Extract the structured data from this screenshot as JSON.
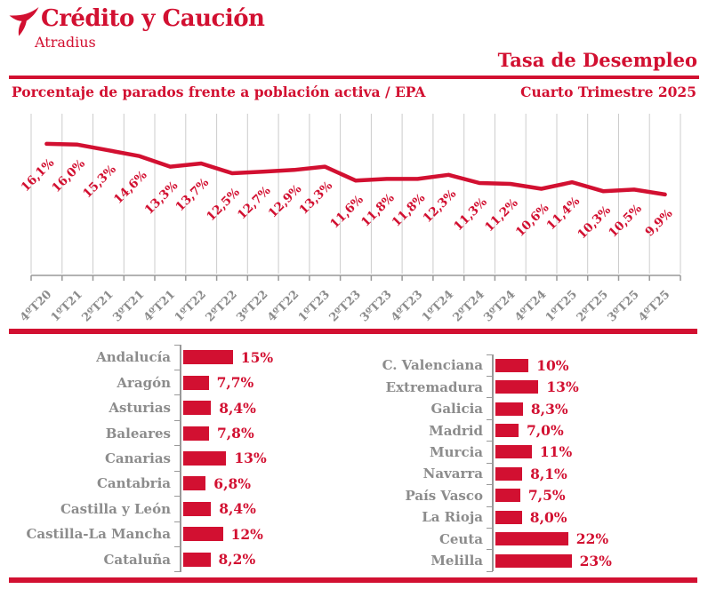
{
  "brand": {
    "name": "Crédito y Caución",
    "sub": "Atradius"
  },
  "title": "Tasa de Desempleo",
  "subtitle": "Porcentaje de parados frente a población activa / EPA",
  "period": "Cuarto Trimestre 2025",
  "colors": {
    "red": "#d21031",
    "gray": "#8c8c8c",
    "gridline": "#cccccc",
    "axis": "#999999"
  },
  "chart_data": [
    {
      "type": "line",
      "title": "Tasa de Desempleo",
      "x": [
        "4ºT20",
        "1ºT21",
        "2ºT21",
        "3ºT21",
        "4ºT21",
        "1ºT22",
        "2ºT22",
        "3ºT22",
        "4ºT22",
        "1ºT23",
        "2ºT23",
        "3ºT23",
        "4ºT23",
        "1ºT24",
        "2ºT24",
        "3ºT24",
        "4ºT24",
        "1ºT25",
        "2ºT25",
        "3ºT25",
        "4ºT25"
      ],
      "values": [
        16.1,
        16.0,
        15.3,
        14.6,
        13.3,
        13.7,
        12.5,
        12.7,
        12.9,
        13.3,
        11.6,
        11.8,
        11.8,
        12.3,
        11.3,
        11.2,
        10.6,
        11.4,
        10.3,
        10.5,
        9.9
      ],
      "labels": [
        "16,1%",
        "16,0%",
        "15,3%",
        "14,6%",
        "13,3%",
        "13,7%",
        "12,5%",
        "12,7%",
        "12,9%",
        "13,3%",
        "11,6%",
        "11,8%",
        "11,8%",
        "12,3%",
        "11,3%",
        "11,2%",
        "10,6%",
        "11,4%",
        "10,3%",
        "10,5%",
        "9,9%"
      ],
      "ylim": [
        0,
        20
      ],
      "grid": "vertical",
      "line_color": "#d21031",
      "legend": "none"
    },
    {
      "type": "bar",
      "orientation": "horizontal",
      "column": "left",
      "unit": "%",
      "categories": [
        "Andalucía",
        "Aragón",
        "Asturias",
        "Baleares",
        "Canarias",
        "Cantabria",
        "Castilla y León",
        "Castilla-La Mancha",
        "Cataluña"
      ],
      "values": [
        15,
        7.7,
        8.4,
        7.8,
        13,
        6.8,
        8.4,
        12,
        8.2
      ],
      "labels": [
        "15%",
        "7,7%",
        "8,4%",
        "7,8%",
        "13%",
        "6,8%",
        "8,4%",
        "12%",
        "8,2%"
      ]
    },
    {
      "type": "bar",
      "orientation": "horizontal",
      "column": "right",
      "unit": "%",
      "categories": [
        "C. Valenciana",
        "Extremadura",
        "Galicia",
        "Madrid",
        "Murcia",
        "Navarra",
        "País Vasco",
        "La Rioja",
        "Ceuta",
        "Melilla"
      ],
      "values": [
        10,
        13,
        8.3,
        7.0,
        11,
        8.1,
        7.5,
        8.0,
        22,
        23
      ],
      "labels": [
        "10%",
        "13%",
        "8,3%",
        "7,0%",
        "11%",
        "8,1%",
        "7,5%",
        "8,0%",
        "22%",
        "23%"
      ]
    }
  ]
}
